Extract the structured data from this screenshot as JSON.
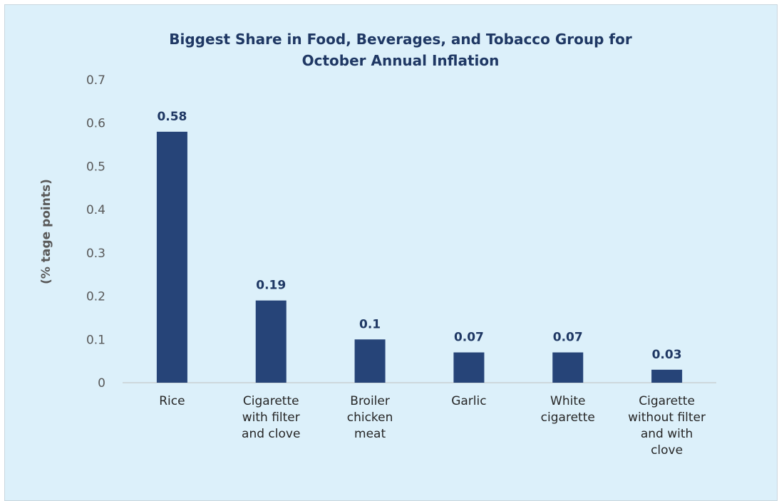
{
  "chart_data": {
    "type": "bar",
    "title_lines": [
      "Biggest Share in Food, Beverages, and Tobacco Group for",
      "October Annual Inflation"
    ],
    "xlabel": "",
    "ylabel": "(% tage points)",
    "ylim": [
      0,
      0.7
    ],
    "yticks": [
      "0",
      "0.1",
      "0.2",
      "0.3",
      "0.4",
      "0.5",
      "0.6",
      "0.7"
    ],
    "grid": false,
    "legend": "none",
    "bar_color": "#264478",
    "categories": [
      [
        "Rice"
      ],
      [
        "Cigarette",
        "with filter",
        "and clove"
      ],
      [
        "Broiler",
        "chicken",
        "meat"
      ],
      [
        "Garlic"
      ],
      [
        "White",
        "cigarette"
      ],
      [
        "Cigarette",
        "without filter",
        "and with",
        "clove"
      ]
    ],
    "values": [
      0.58,
      0.19,
      0.1,
      0.07,
      0.07,
      0.03
    ],
    "data_labels": [
      "0.58",
      "0.19",
      "0.1",
      "0.07",
      "0.07",
      "0.03"
    ]
  }
}
